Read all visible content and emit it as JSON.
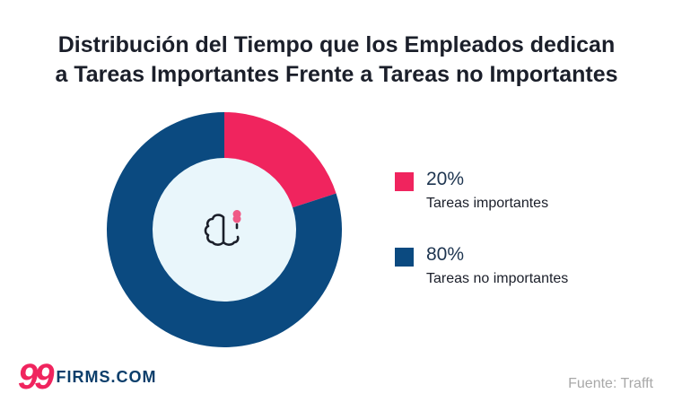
{
  "chart_data": {
    "type": "pie",
    "donut": true,
    "title": "Distribución del Tiempo que los Empleados dedican a Tareas Importantes Frente a Tareas no Importantes",
    "title_lines": [
      "Distribución del Tiempo que los Empleados dedican",
      "a Tareas Importantes Frente a Tareas no Importantes"
    ],
    "slices": [
      {
        "label": "Tareas importantes",
        "value": 20,
        "value_label": "20%",
        "color": "#f0245e"
      },
      {
        "label": "Tareas no importantes",
        "value": 80,
        "value_label": "80%",
        "color": "#0b4a80"
      }
    ],
    "center_icon": "brain-lightbulb-icon",
    "center_color": "#e9f6fb",
    "legend_position": "right"
  },
  "footer": {
    "logo_number": "99",
    "logo_text": "FIRMS.COM",
    "source": "Fuente: Trafft"
  }
}
